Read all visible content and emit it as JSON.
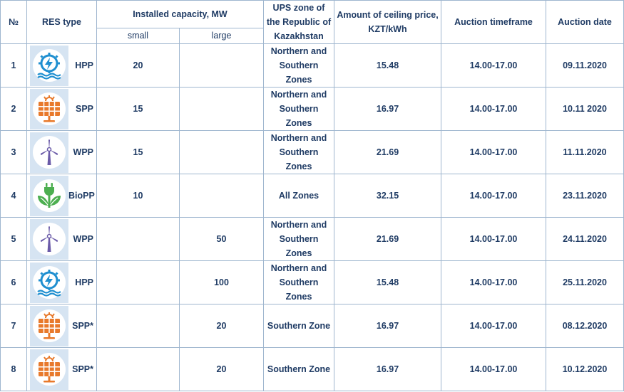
{
  "header": {
    "num": "№",
    "res_type": "RES type",
    "capacity": "Installed capacity, MW",
    "small": "small",
    "large": "large",
    "ups_zone": "UPS zone of the Republic of Kazakhstan",
    "ceiling_price": "Amount of ceiling price, KZT/kWh",
    "timeframe": "Auction timeframe",
    "date": "Auction date"
  },
  "rows": [
    {
      "num": "1",
      "icon": "hydro-icon",
      "type": "HPP",
      "small": "20",
      "large": "",
      "zone": "Northern and Southern Zones",
      "price": "15.48",
      "time": "14.00-17.00",
      "date": "09.11.2020"
    },
    {
      "num": "2",
      "icon": "solar-panel-icon",
      "type": "SPP",
      "small": "15",
      "large": "",
      "zone": "Northern and Southern Zones",
      "price": "16.97",
      "time": "14.00-17.00",
      "date": "10.11 2020"
    },
    {
      "num": "3",
      "icon": "wind-turbine-icon",
      "type": "WPP",
      "small": "15",
      "large": "",
      "zone": "Northern and Southern Zones",
      "price": "21.69",
      "time": "14.00-17.00",
      "date": "11.11.2020"
    },
    {
      "num": "4",
      "icon": "bio-plug-icon",
      "type": "BioPP",
      "small": "10",
      "large": "",
      "zone": "All Zones",
      "price": "32.15",
      "time": "14.00-17.00",
      "date": "23.11.2020"
    },
    {
      "num": "5",
      "icon": "wind-turbine-icon",
      "type": "WPP",
      "small": "",
      "large": "50",
      "zone": "Northern and Southern Zones",
      "price": "21.69",
      "time": "14.00-17.00",
      "date": "24.11.2020"
    },
    {
      "num": "6",
      "icon": "hydro-icon",
      "type": "HPP",
      "small": "",
      "large": "100",
      "zone": "Northern and Southern Zones",
      "price": "15.48",
      "time": "14.00-17.00",
      "date": "25.11.2020"
    },
    {
      "num": "7",
      "icon": "solar-panel-icon",
      "type": "SPP*",
      "small": "",
      "large": "20",
      "zone": "Southern Zone",
      "price": "16.97",
      "time": "14.00-17.00",
      "date": "08.12.2020"
    },
    {
      "num": "8",
      "icon": "solar-panel-icon",
      "type": "SPP*",
      "small": "",
      "large": "20",
      "zone": "Southern Zone",
      "price": "16.97",
      "time": "14.00-17.00",
      "date": "10.12.2020"
    }
  ],
  "colors": {
    "text": "#1f3b64",
    "border": "#9fb6cf",
    "icon_bg": "#d6e4f2",
    "hydro": "#1f8fd0",
    "solar": "#e8792b",
    "wind": "#6a5aa8",
    "bio": "#4caf50"
  }
}
